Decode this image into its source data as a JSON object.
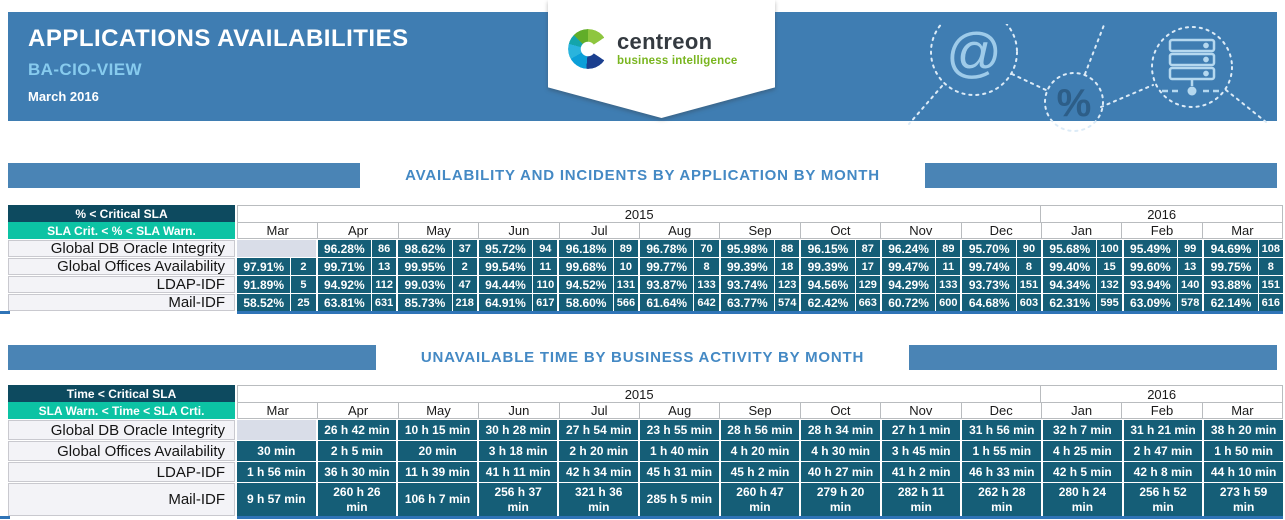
{
  "header": {
    "title": "APPLICATIONS AVAILABILITIES",
    "subtitle": "BA-CIO-VIEW",
    "period": "March 2016",
    "logo": {
      "brand": "centreon",
      "tagline": "business intelligence"
    },
    "decor_icons": [
      "at-icon",
      "percent-icon",
      "server-icon"
    ]
  },
  "colors": {
    "header_blue": "#3f7db2",
    "accent_bar_blue": "#4a84b5",
    "section_title_blue": "#4489c4",
    "subtitle_light_blue": "#87cbee",
    "legend_critical_teal": "#0d4a5f",
    "legend_warning_teal": "#0cc3a4",
    "data_cell_teal": "#155e77",
    "empty_cell_gray": "#d9dde8",
    "table_bottom_blue": "#2f74b7",
    "logo_green": "#79b51f"
  },
  "tables": {
    "availability": {
      "title": "AVAILABILITY AND INCIDENTS BY APPLICATION BY MONTH",
      "legend": {
        "critical": "% < Critical SLA",
        "warning": "SLA Crit. < % < SLA Warn."
      },
      "year_groups": [
        {
          "label": "2015",
          "span": 10
        },
        {
          "label": "2016",
          "span": 3
        }
      ],
      "months": [
        "Mar",
        "Apr",
        "May",
        "Jun",
        "Jul",
        "Aug",
        "Sep",
        "Oct",
        "Nov",
        "Dec",
        "Jan",
        "Feb",
        "Mar"
      ],
      "rows": [
        {
          "label": "Global DB Oracle Integrity",
          "cells": [
            null,
            {
              "pct": "96.28%",
              "count": "86"
            },
            {
              "pct": "98.62%",
              "count": "37"
            },
            {
              "pct": "95.72%",
              "count": "94"
            },
            {
              "pct": "96.18%",
              "count": "89"
            },
            {
              "pct": "96.78%",
              "count": "70"
            },
            {
              "pct": "95.98%",
              "count": "88"
            },
            {
              "pct": "96.15%",
              "count": "87"
            },
            {
              "pct": "96.24%",
              "count": "89"
            },
            {
              "pct": "95.70%",
              "count": "90"
            },
            {
              "pct": "95.68%",
              "count": "100"
            },
            {
              "pct": "95.49%",
              "count": "99"
            },
            {
              "pct": "94.69%",
              "count": "108"
            }
          ]
        },
        {
          "label": "Global Offices Availability",
          "cells": [
            {
              "pct": "97.91%",
              "count": "2"
            },
            {
              "pct": "99.71%",
              "count": "13"
            },
            {
              "pct": "99.95%",
              "count": "2"
            },
            {
              "pct": "99.54%",
              "count": "11"
            },
            {
              "pct": "99.68%",
              "count": "10"
            },
            {
              "pct": "99.77%",
              "count": "8"
            },
            {
              "pct": "99.39%",
              "count": "18"
            },
            {
              "pct": "99.39%",
              "count": "17"
            },
            {
              "pct": "99.47%",
              "count": "11"
            },
            {
              "pct": "99.74%",
              "count": "8"
            },
            {
              "pct": "99.40%",
              "count": "15"
            },
            {
              "pct": "99.60%",
              "count": "13"
            },
            {
              "pct": "99.75%",
              "count": "8"
            }
          ]
        },
        {
          "label": "LDAP-IDF",
          "cells": [
            {
              "pct": "91.89%",
              "count": "5"
            },
            {
              "pct": "94.92%",
              "count": "112"
            },
            {
              "pct": "99.03%",
              "count": "47"
            },
            {
              "pct": "94.44%",
              "count": "110"
            },
            {
              "pct": "94.52%",
              "count": "131"
            },
            {
              "pct": "93.87%",
              "count": "133"
            },
            {
              "pct": "93.74%",
              "count": "123"
            },
            {
              "pct": "94.56%",
              "count": "129"
            },
            {
              "pct": "94.29%",
              "count": "133"
            },
            {
              "pct": "93.73%",
              "count": "151"
            },
            {
              "pct": "94.34%",
              "count": "132"
            },
            {
              "pct": "93.94%",
              "count": "140"
            },
            {
              "pct": "93.88%",
              "count": "151"
            }
          ]
        },
        {
          "label": "Mail-IDF",
          "cells": [
            {
              "pct": "58.52%",
              "count": "25"
            },
            {
              "pct": "63.81%",
              "count": "631"
            },
            {
              "pct": "85.73%",
              "count": "218"
            },
            {
              "pct": "64.91%",
              "count": "617"
            },
            {
              "pct": "58.60%",
              "count": "566"
            },
            {
              "pct": "61.64%",
              "count": "642"
            },
            {
              "pct": "63.77%",
              "count": "574"
            },
            {
              "pct": "62.42%",
              "count": "663"
            },
            {
              "pct": "60.72%",
              "count": "600"
            },
            {
              "pct": "64.68%",
              "count": "603"
            },
            {
              "pct": "62.31%",
              "count": "595"
            },
            {
              "pct": "63.09%",
              "count": "578"
            },
            {
              "pct": "62.14%",
              "count": "616"
            }
          ]
        }
      ]
    },
    "unavailable_time": {
      "title": "UNAVAILABLE TIME BY BUSINESS ACTIVITY BY MONTH",
      "legend": {
        "critical": "Time < Critical SLA",
        "warning": "SLA Warn. < Time < SLA Crti."
      },
      "year_groups": [
        {
          "label": "2015",
          "span": 10
        },
        {
          "label": "2016",
          "span": 3
        }
      ],
      "months": [
        "Mar",
        "Apr",
        "May",
        "Jun",
        "Jul",
        "Aug",
        "Sep",
        "Oct",
        "Nov",
        "Dec",
        "Jan",
        "Feb",
        "Mar"
      ],
      "last_row_tall": true,
      "rows": [
        {
          "label": "Global DB Oracle Integrity",
          "cells": [
            null,
            "26 h 42 min",
            "10 h 15 min",
            "30 h 28 min",
            "27 h 54 min",
            "23 h 55 min",
            "28 h 56 min",
            "28 h 34 min",
            "27 h 1 min",
            "31 h 56 min",
            "32 h 7 min",
            "31 h 21 min",
            "38 h 20 min"
          ]
        },
        {
          "label": "Global Offices Availability",
          "cells": [
            "30 min",
            "2 h 5 min",
            "20 min",
            "3 h 18 min",
            "2 h 20 min",
            "1 h 40 min",
            "4 h 20 min",
            "4 h 30 min",
            "3 h 45 min",
            "1 h 55 min",
            "4 h 25 min",
            "2 h 47 min",
            "1 h 50 min"
          ]
        },
        {
          "label": "LDAP-IDF",
          "cells": [
            "1 h 56 min",
            "36 h 30 min",
            "11 h 39 min",
            "41 h 11 min",
            "42 h 34 min",
            "45 h 31 min",
            "45 h 2 min",
            "40 h 27 min",
            "41 h 2 min",
            "46 h 33 min",
            "42 h 5 min",
            "42 h 8 min",
            "44 h 10 min"
          ]
        },
        {
          "label": "Mail-IDF",
          "cells": [
            "9 h 57 min",
            "260 h 26 min",
            "106 h 7 min",
            "256 h 37 min",
            "321 h 36 min",
            "285 h 5 min",
            "260 h 47 min",
            "279 h 20 min",
            "282 h 11 min",
            "262 h 28 min",
            "280 h 24 min",
            "256 h 52 min",
            "273 h 59 min"
          ]
        }
      ]
    }
  }
}
